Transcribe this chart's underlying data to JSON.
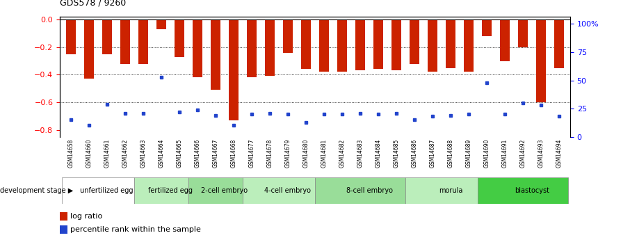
{
  "title": "GDS578 / 9260",
  "samples": [
    "GSM14658",
    "GSM14660",
    "GSM14661",
    "GSM14662",
    "GSM14663",
    "GSM14664",
    "GSM14665",
    "GSM14666",
    "GSM14667",
    "GSM14668",
    "GSM14677",
    "GSM14678",
    "GSM14679",
    "GSM14680",
    "GSM14681",
    "GSM14682",
    "GSM14683",
    "GSM14684",
    "GSM14685",
    "GSM14686",
    "GSM14687",
    "GSM14688",
    "GSM14689",
    "GSM14690",
    "GSM14691",
    "GSM14692",
    "GSM14693",
    "GSM14694"
  ],
  "log_ratio": [
    -0.25,
    -0.43,
    -0.25,
    -0.32,
    -0.32,
    -0.07,
    -0.27,
    -0.42,
    -0.51,
    -0.73,
    -0.42,
    -0.41,
    -0.24,
    -0.36,
    -0.38,
    -0.38,
    -0.37,
    -0.36,
    -0.37,
    -0.32,
    -0.38,
    -0.35,
    -0.38,
    -0.12,
    -0.3,
    -0.2,
    -0.6,
    -0.35
  ],
  "percentile": [
    15,
    10,
    29,
    21,
    21,
    53,
    22,
    24,
    19,
    10,
    20,
    21,
    20,
    13,
    20,
    20,
    21,
    20,
    21,
    15,
    18,
    19,
    20,
    48,
    20,
    30,
    28,
    18
  ],
  "stages": [
    {
      "label": "unfertilized egg",
      "start": 0,
      "end": 4,
      "color": "#ffffff"
    },
    {
      "label": "fertilized egg",
      "start": 4,
      "end": 7,
      "color": "#bbeebb"
    },
    {
      "label": "2-cell embryo",
      "start": 7,
      "end": 10,
      "color": "#99dd99"
    },
    {
      "label": "4-cell embryo",
      "start": 10,
      "end": 14,
      "color": "#bbeebb"
    },
    {
      "label": "8-cell embryo",
      "start": 14,
      "end": 19,
      "color": "#99dd99"
    },
    {
      "label": "morula",
      "start": 19,
      "end": 23,
      "color": "#bbeebb"
    },
    {
      "label": "blastocyst",
      "start": 23,
      "end": 28,
      "color": "#44cc44"
    }
  ],
  "bar_color": "#cc2200",
  "dot_color": "#2244cc",
  "left_ylim": [
    -0.85,
    0.02
  ],
  "left_yticks": [
    0,
    -0.2,
    -0.4,
    -0.6,
    -0.8
  ],
  "right_ylim": [
    0,
    106.375
  ],
  "right_yticks": [
    0,
    25,
    50,
    75,
    100
  ],
  "grid_values": [
    -0.2,
    -0.4,
    -0.6
  ],
  "background_color": "#ffffff",
  "bar_width": 0.55
}
